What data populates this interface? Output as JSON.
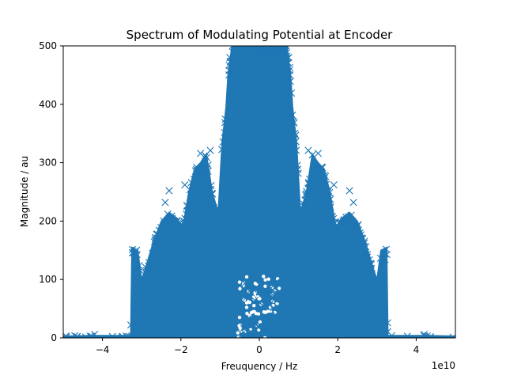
{
  "chart_data": {
    "type": "scatter",
    "title": "Spectrum of Modulating Potential at Encoder",
    "xlabel": "Freuquency / Hz",
    "ylabel": "Magnitude / au",
    "x_offset_label": "1e10",
    "xlim": [
      -5.0,
      5.0
    ],
    "ylim": [
      0,
      500
    ],
    "x_ticks": [
      {
        "value": -4,
        "label": "−4"
      },
      {
        "value": -2,
        "label": "−2"
      },
      {
        "value": 0,
        "label": "0"
      },
      {
        "value": 2,
        "label": "2"
      },
      {
        "value": 4,
        "label": "4"
      }
    ],
    "y_ticks": [
      {
        "value": 0,
        "label": "0"
      },
      {
        "value": 100,
        "label": "100"
      },
      {
        "value": 200,
        "label": "200"
      },
      {
        "value": 300,
        "label": "300"
      },
      {
        "value": 400,
        "label": "400"
      },
      {
        "value": 500,
        "label": "500"
      }
    ],
    "marker": "x",
    "color": "#1f77b4",
    "grid": false,
    "envelope": {
      "x": [
        -5.0,
        -4.3,
        -3.28,
        -3.25,
        -3.1,
        -3.0,
        -2.9,
        -2.7,
        -2.5,
        -2.3,
        -2.1,
        -1.95,
        -1.8,
        -1.65,
        -1.5,
        -1.35,
        -1.2,
        -1.05,
        -0.95,
        -0.85,
        -0.8,
        -0.7,
        -0.6,
        0.6,
        0.7,
        0.8,
        0.85,
        0.95,
        1.05,
        1.2,
        1.35,
        1.5,
        1.65,
        1.8,
        1.95,
        2.1,
        2.3,
        2.5,
        2.7,
        2.9,
        3.0,
        3.1,
        3.25,
        3.28,
        4.3,
        5.0
      ],
      "y": [
        3,
        4,
        4,
        155,
        150,
        100,
        120,
        165,
        200,
        215,
        205,
        190,
        250,
        290,
        300,
        315,
        250,
        215,
        335,
        395,
        450,
        500,
        500,
        500,
        500,
        450,
        395,
        335,
        215,
        250,
        315,
        300,
        290,
        250,
        190,
        205,
        215,
        200,
        165,
        120,
        100,
        150,
        155,
        4,
        4,
        3
      ]
    },
    "outliers": [
      {
        "x": -4.2,
        "y": 6
      },
      {
        "x": 4.2,
        "y": 6
      },
      {
        "x": -1.25,
        "y": 321
      },
      {
        "x": 1.25,
        "y": 321
      },
      {
        "x": -1.5,
        "y": 316
      },
      {
        "x": 1.5,
        "y": 316
      },
      {
        "x": -2.3,
        "y": 252
      },
      {
        "x": 2.3,
        "y": 252
      },
      {
        "x": -2.4,
        "y": 232
      },
      {
        "x": 2.4,
        "y": 232
      },
      {
        "x": -1.9,
        "y": 262
      },
      {
        "x": 1.9,
        "y": 262
      },
      {
        "x": -0.75,
        "y": 480
      },
      {
        "x": 0.75,
        "y": 480
      },
      {
        "x": -0.55,
        "y": 500
      },
      {
        "x": 0.55,
        "y": 500
      }
    ]
  }
}
